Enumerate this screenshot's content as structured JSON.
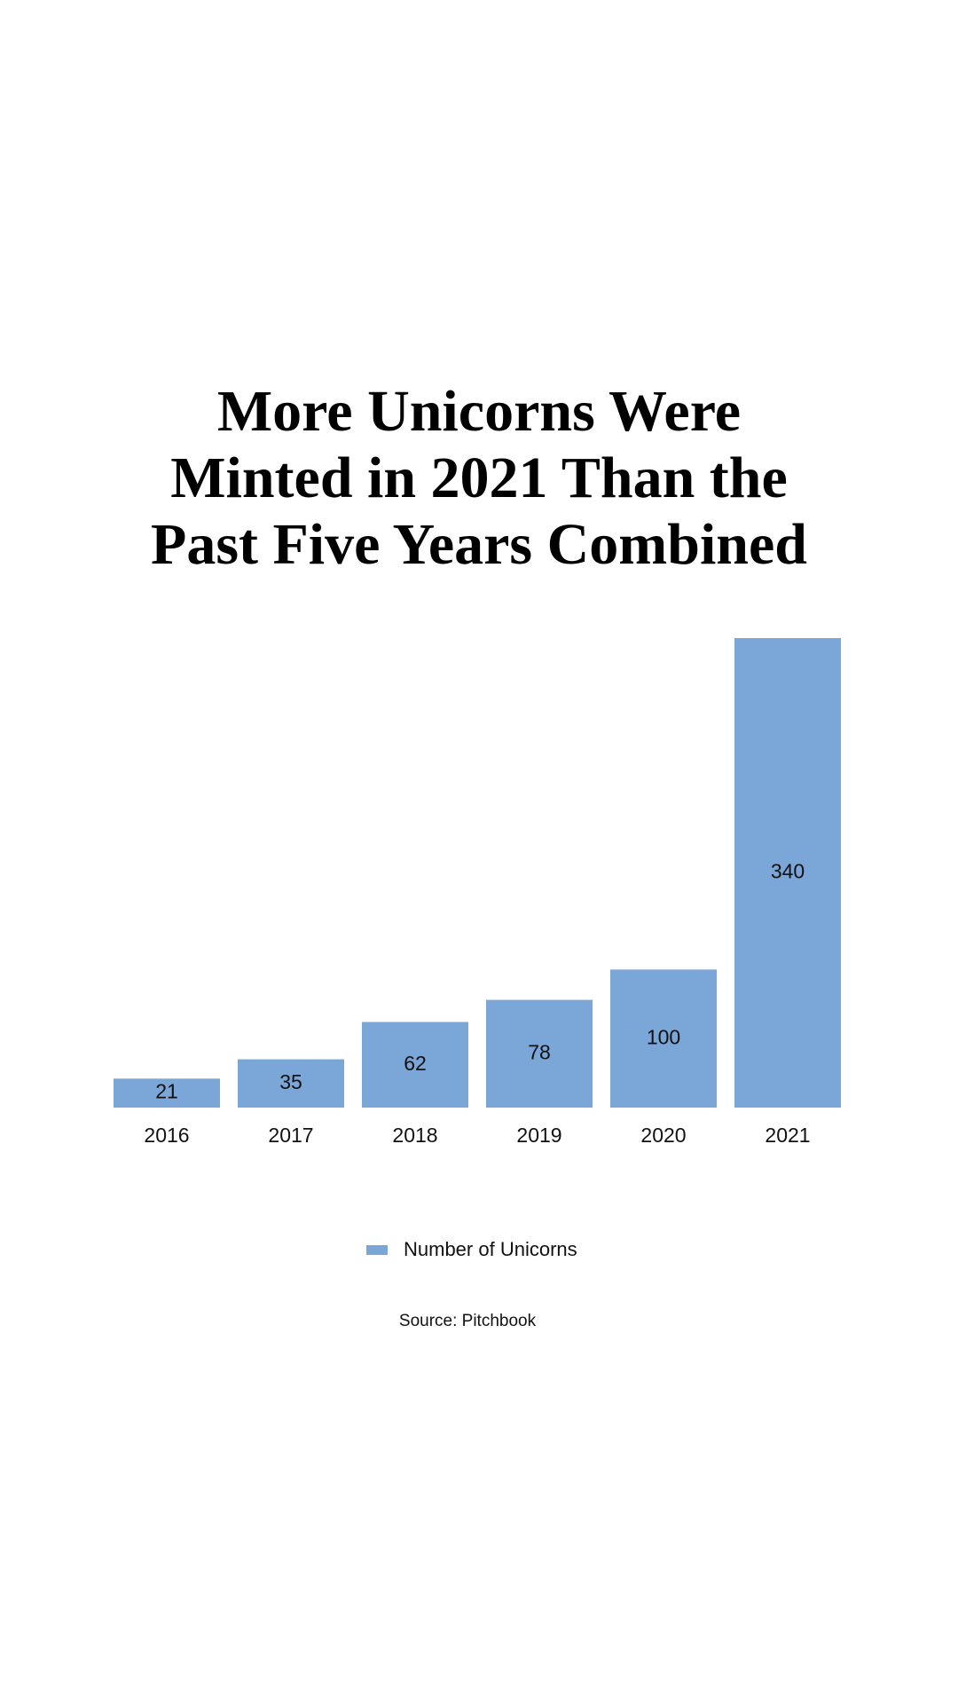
{
  "chart_data": {
    "type": "bar",
    "title": [
      "More Unicorns Were",
      "Minted in 2021 Than the",
      "Past Five Years Combined"
    ],
    "categories": [
      "2016",
      "2017",
      "2018",
      "2019",
      "2020",
      "2021"
    ],
    "series": [
      {
        "name": "Number of Unicorns",
        "color": "#7aa6d8",
        "values": [
          21,
          35,
          62,
          78,
          100,
          340
        ]
      }
    ],
    "source": "Source: Pitchbook"
  }
}
